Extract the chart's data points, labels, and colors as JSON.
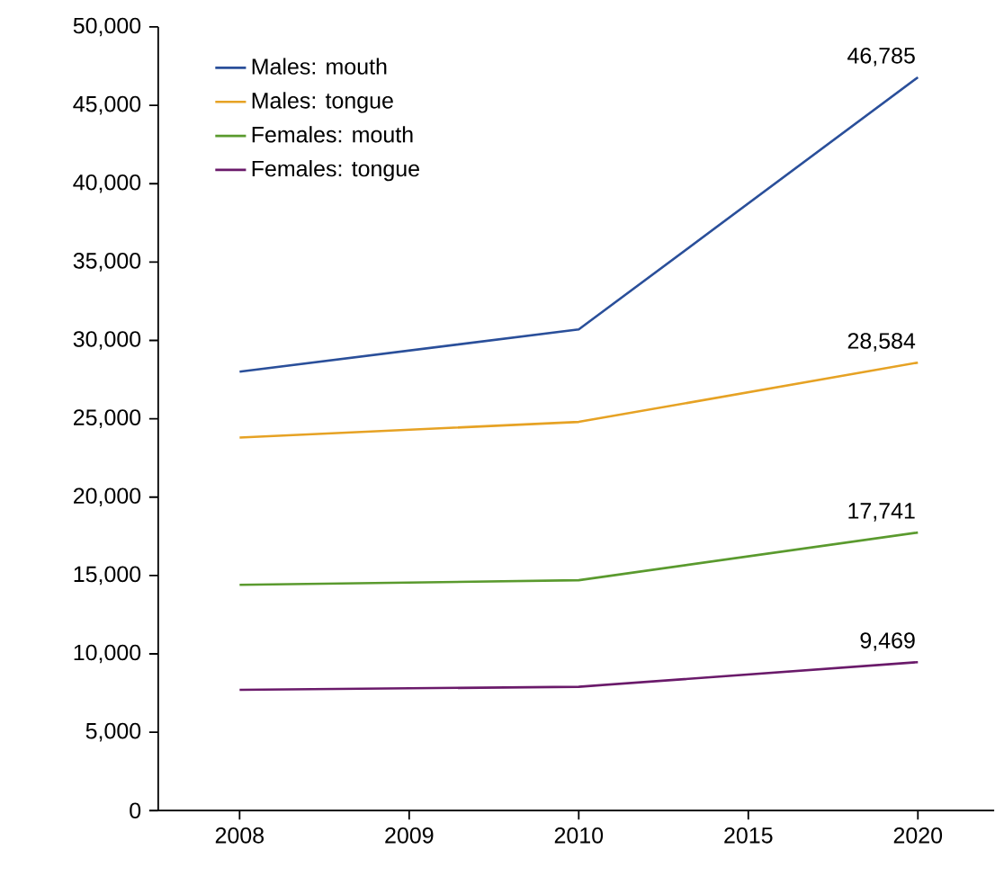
{
  "chart_data": {
    "type": "line",
    "categories": [
      "2008",
      "2009",
      "2010",
      "2015",
      "2020"
    ],
    "series": [
      {
        "name": "Males: mouth",
        "color": "#2a4f9a",
        "values": [
          28000,
          null,
          30700,
          null,
          46785
        ],
        "value_labels": [
          null,
          null,
          null,
          null,
          "46,785"
        ]
      },
      {
        "name": "Males: tongue",
        "color": "#e6a224",
        "values": [
          23800,
          null,
          24800,
          null,
          28584
        ],
        "value_labels": [
          null,
          null,
          null,
          null,
          "28,584"
        ]
      },
      {
        "name": "Females: mouth",
        "color": "#5a9a2e",
        "values": [
          14400,
          null,
          14700,
          null,
          17741
        ],
        "value_labels": [
          null,
          null,
          null,
          null,
          "17,741"
        ]
      },
      {
        "name": "Females: tongue",
        "color": "#6a1a6a",
        "values": [
          7700,
          null,
          7900,
          null,
          9469
        ],
        "value_labels": [
          null,
          null,
          null,
          null,
          "9,469"
        ]
      }
    ],
    "ylim": [
      0,
      50000
    ],
    "yticks": [
      {
        "value": 0,
        "label": "0"
      },
      {
        "value": 5000,
        "label": "5,000"
      },
      {
        "value": 10000,
        "label": "10,000"
      },
      {
        "value": 15000,
        "label": "15,000"
      },
      {
        "value": 20000,
        "label": "20,000"
      },
      {
        "value": 25000,
        "label": "25,000"
      },
      {
        "value": 30000,
        "label": "30,000"
      },
      {
        "value": 35000,
        "label": "35,000"
      },
      {
        "value": 40000,
        "label": "40,000"
      },
      {
        "value": 45000,
        "label": "45,000"
      },
      {
        "value": 50000,
        "label": "50,000"
      }
    ],
    "legend": "top left",
    "grid": false,
    "marker": "none"
  }
}
